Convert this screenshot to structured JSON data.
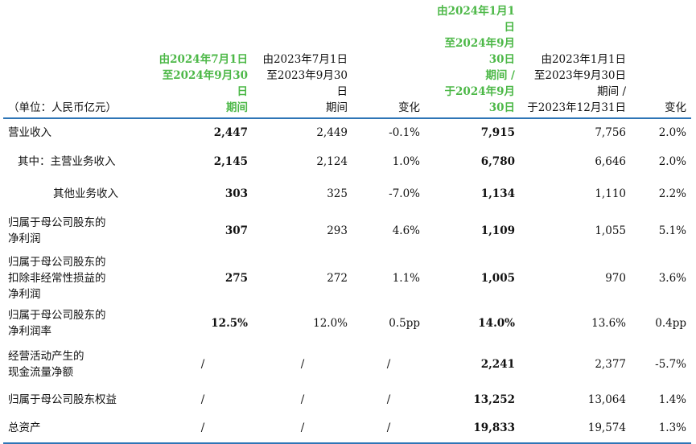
{
  "header": {
    "unit": "（单位：人民币亿元）",
    "col1": [
      "由2024年7月1日",
      "至2024年9月30日",
      "期间"
    ],
    "col2": [
      "由2023年7月1日",
      "至2023年9月30日",
      "期间"
    ],
    "col3": "变化",
    "col4": [
      "由2024年1月1日",
      "至2024年9月30日",
      "期间 /",
      "于2024年9月30日"
    ],
    "col5": [
      "由2023年1月1日",
      "至2023年9月30日",
      "期间 /",
      "于2023年12月31日"
    ],
    "col6": "变化"
  },
  "rows": [
    {
      "label": [
        "营业收入"
      ],
      "v": [
        "2,447",
        "2,449",
        "-0.1%",
        "7,915",
        "7,756",
        "2.0%"
      ]
    },
    {
      "label": [
        "其中：主营业务收入"
      ],
      "v": [
        "2,145",
        "2,124",
        "1.0%",
        "6,780",
        "6,646",
        "2.0%"
      ]
    },
    {
      "label": [
        "其他业务收入"
      ],
      "v": [
        "303",
        "325",
        "-7.0%",
        "1,134",
        "1,110",
        "2.2%"
      ]
    },
    {
      "label": [
        "归属于母公司股东的",
        "净利润"
      ],
      "v": [
        "307",
        "293",
        "4.6%",
        "1,109",
        "1,055",
        "5.1%"
      ]
    },
    {
      "label": [
        "归属于母公司股东的",
        "扣除非经常性损益的",
        "净利润"
      ],
      "v": [
        "275",
        "272",
        "1.1%",
        "1,005",
        "970",
        "3.6%"
      ]
    },
    {
      "label": [
        "归属于母公司股东的",
        "净利润率"
      ],
      "v": [
        "12.5%",
        "12.0%",
        "0.5pp",
        "14.0%",
        "13.6%",
        "0.4pp"
      ]
    },
    {
      "label": [
        "经营活动产生的",
        "现金流量净额"
      ],
      "v": [
        "/",
        "/",
        "/",
        "2,241",
        "2,377",
        "-5.7%"
      ]
    },
    {
      "label": [
        "归属于母公司股东权益"
      ],
      "v": [
        "/",
        "/",
        "/",
        "13,252",
        "13,064",
        "1.4%"
      ]
    },
    {
      "label": [
        "总资产"
      ],
      "v": [
        "/",
        "/",
        "/",
        "19,833",
        "19,574",
        "1.3%"
      ]
    }
  ]
}
